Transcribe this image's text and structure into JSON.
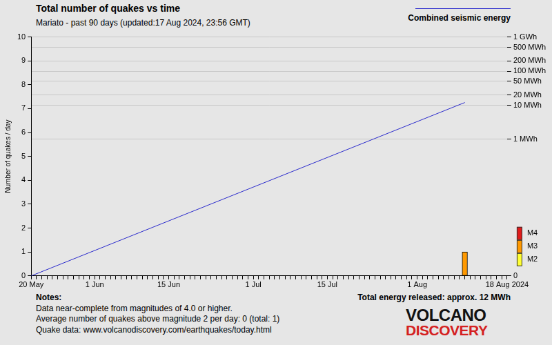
{
  "chart_data": {
    "type": "bar",
    "title": "Total number of quakes vs time",
    "subtitle": "Mariato - past 90 days (updated:17 Aug 2024, 23:56 GMT)",
    "y_label": "Number of quakes / day",
    "categories": [
      "20 May",
      null,
      null,
      null,
      null,
      null,
      null,
      null,
      null,
      null,
      null,
      null,
      "1 Jun",
      null,
      null,
      null,
      null,
      null,
      null,
      null,
      null,
      null,
      null,
      null,
      null,
      null,
      "15 Jun",
      null,
      null,
      null,
      null,
      null,
      null,
      null,
      null,
      null,
      null,
      null,
      null,
      null,
      null,
      null,
      "1 Jul",
      null,
      null,
      null,
      null,
      null,
      null,
      null,
      null,
      null,
      null,
      null,
      null,
      null,
      "15 Jul",
      null,
      null,
      null,
      null,
      null,
      null,
      null,
      null,
      null,
      null,
      null,
      null,
      null,
      null,
      null,
      null,
      "1 Aug",
      null,
      null,
      null,
      null,
      null,
      null,
      null,
      null,
      null,
      null,
      null,
      null,
      null,
      null,
      null,
      null,
      "18 Aug 2024"
    ],
    "series": [
      {
        "type": "bar",
        "color": "#ff9900",
        "values": [
          0,
          0,
          0,
          0,
          0,
          0,
          0,
          0,
          0,
          0,
          0,
          0,
          0,
          0,
          0,
          0,
          0,
          0,
          0,
          0,
          0,
          0,
          0,
          0,
          0,
          0,
          0,
          0,
          0,
          0,
          0,
          0,
          0,
          0,
          0,
          0,
          0,
          0,
          0,
          0,
          0,
          0,
          0,
          0,
          0,
          0,
          0,
          0,
          0,
          0,
          0,
          0,
          0,
          0,
          0,
          0,
          0,
          0,
          0,
          0,
          0,
          0,
          0,
          0,
          0,
          0,
          0,
          0,
          0,
          0,
          0,
          0,
          0,
          0,
          0,
          0,
          0,
          0,
          0,
          0,
          0,
          0,
          1,
          0,
          0,
          0,
          0,
          0,
          0,
          0,
          0
        ]
      },
      {
        "name": "Combined seismic energy",
        "type": "line",
        "color": "#2a2acc",
        "axis": "y2",
        "values": [
          0,
          null,
          null,
          null,
          null,
          null,
          null,
          null,
          null,
          null,
          null,
          null,
          null,
          null,
          null,
          null,
          null,
          null,
          null,
          null,
          null,
          null,
          null,
          null,
          null,
          null,
          null,
          null,
          null,
          null,
          null,
          null,
          null,
          null,
          null,
          null,
          null,
          null,
          null,
          null,
          null,
          null,
          null,
          null,
          null,
          null,
          null,
          null,
          null,
          null,
          null,
          null,
          null,
          null,
          null,
          null,
          null,
          null,
          null,
          null,
          null,
          null,
          null,
          null,
          null,
          null,
          null,
          null,
          null,
          null,
          null,
          null,
          null,
          null,
          null,
          null,
          null,
          null,
          null,
          null,
          null,
          null,
          12,
          null,
          null,
          null,
          null,
          null,
          null,
          null,
          null
        ]
      }
    ],
    "ylim": [
      0,
      10
    ],
    "yticks": [
      0,
      1,
      2,
      3,
      4,
      5,
      6,
      7,
      8,
      9,
      10
    ],
    "y2lim": [
      0,
      1000
    ],
    "y2ticks": [
      0,
      {
        "value": 1,
        "label": "1 MWh"
      },
      {
        "value": 10,
        "label": "10 MWh"
      },
      {
        "value": 20,
        "label": "20 MWh"
      },
      {
        "value": 50,
        "label": "50 MWh"
      },
      {
        "value": 100,
        "label": "100 MWh"
      },
      {
        "value": 200,
        "label": "200 MWh"
      },
      {
        "value": 500,
        "label": "500 MWh"
      },
      {
        "value": 1000,
        "label": "1 GWh"
      }
    ],
    "log": "y2",
    "grid": true,
    "legend": "upper right",
    "annotations": {
      "magnitude_scale": [
        {
          "label": "M4",
          "color": "#e01b1b"
        },
        {
          "label": "M3",
          "color": "#ff9900"
        },
        {
          "label": "M2",
          "color": "#ffff33"
        }
      ],
      "notes_title": "Notes:",
      "notes": [
        "Data near-complete from magnitudes of 4.0 or higher.",
        "Average number of quakes above magnitude 2 per day: 0 (total: 1)",
        "Quake data: www.volcanodiscovery.com/earthquakes/today.html"
      ],
      "energy_total": "Total energy released: approx. 12 MWh",
      "logo": [
        "VOLCANO",
        "DISCOVERY"
      ]
    }
  }
}
